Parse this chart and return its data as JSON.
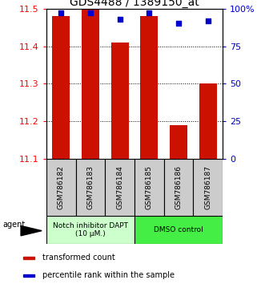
{
  "title": "GDS4488 / 1389150_at",
  "samples": [
    "GSM786182",
    "GSM786183",
    "GSM786184",
    "GSM786185",
    "GSM786186",
    "GSM786187"
  ],
  "bar_values": [
    11.48,
    11.5,
    11.41,
    11.48,
    11.19,
    11.3
  ],
  "bar_base": 11.1,
  "percentile_values": [
    97,
    97,
    93,
    97,
    90,
    92
  ],
  "bar_color": "#cc1100",
  "percentile_color": "#0000cc",
  "ylim_left": [
    11.1,
    11.5
  ],
  "ylim_right": [
    0,
    100
  ],
  "yticks_left": [
    11.1,
    11.2,
    11.3,
    11.4,
    11.5
  ],
  "yticks_right": [
    0,
    25,
    50,
    75,
    100
  ],
  "ytick_labels_right": [
    "0",
    "25",
    "50",
    "75",
    "100%"
  ],
  "group1_label": "Notch inhibitor DAPT\n(10 μM.)",
  "group2_label": "DMSO control",
  "group1_color": "#ccffcc",
  "group2_color": "#44ee44",
  "agent_label": "agent",
  "legend1_label": "transformed count",
  "legend2_label": "percentile rank within the sample",
  "background_color": "#ffffff",
  "title_fontsize": 10,
  "tick_fontsize": 8,
  "label_fontsize": 7,
  "bar_width": 0.6
}
